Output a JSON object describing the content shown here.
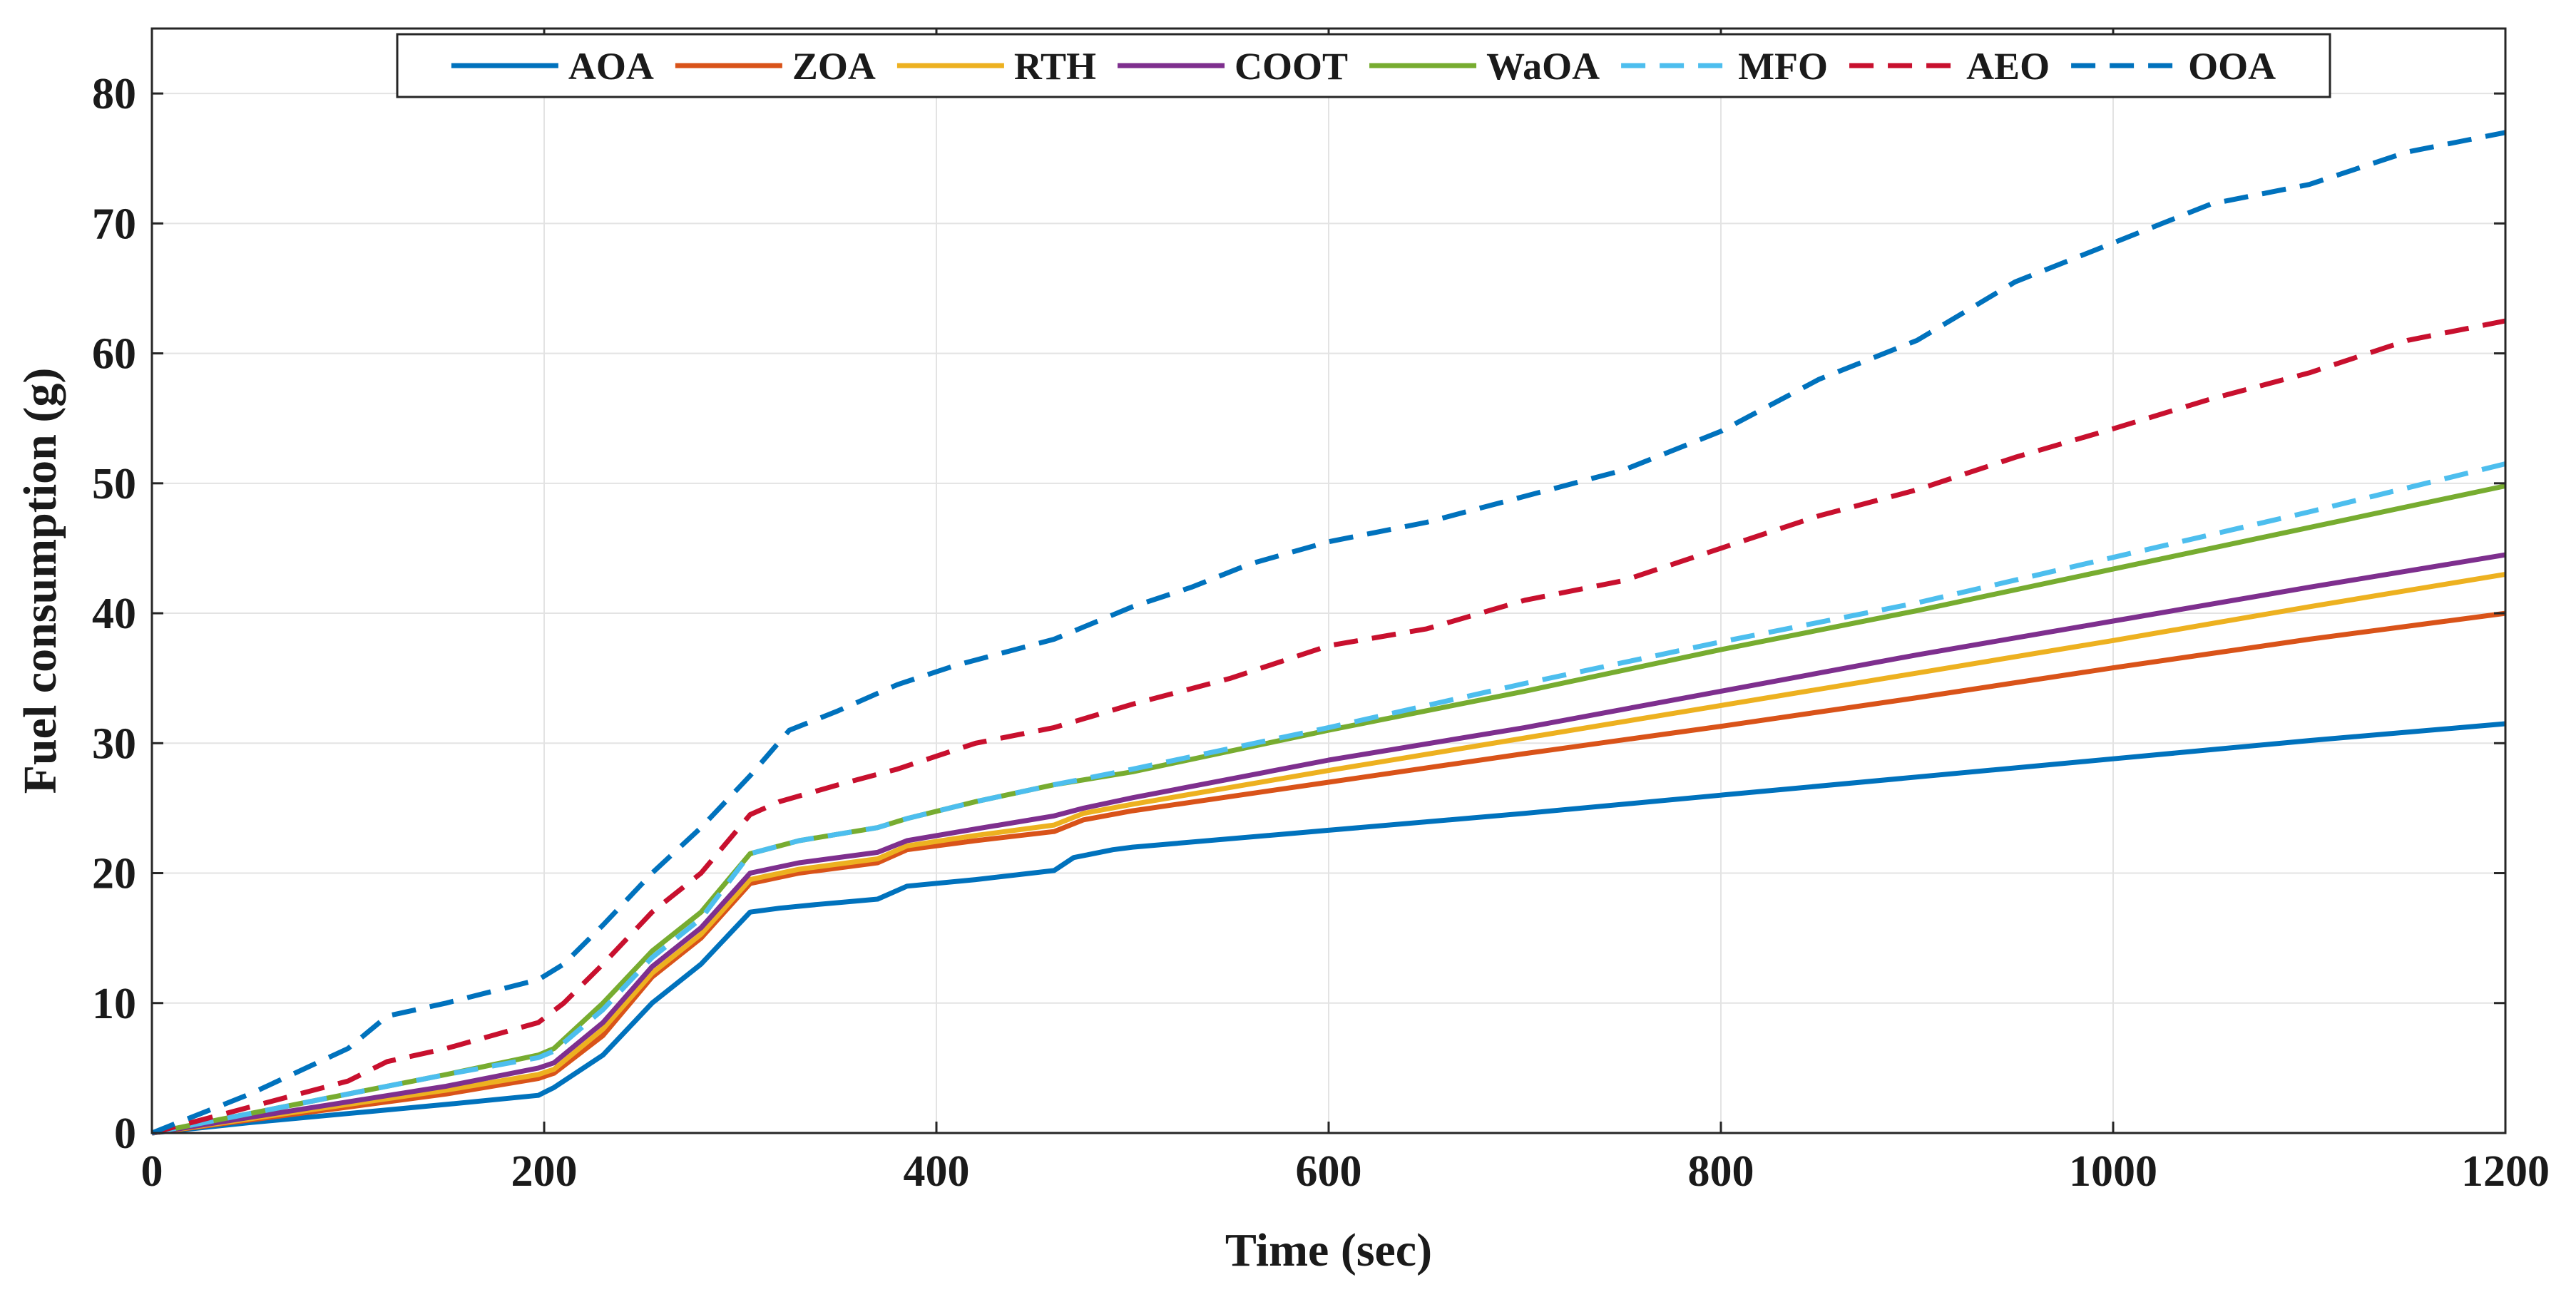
{
  "chart_data": {
    "type": "line",
    "title": "",
    "xlabel": "Time (sec)",
    "ylabel": "Fuel consumption (g)",
    "xlim": [
      0,
      1200
    ],
    "ylim": [
      0,
      85
    ],
    "xticks": [
      0,
      200,
      400,
      600,
      800,
      1000,
      1200
    ],
    "yticks": [
      0,
      10,
      20,
      30,
      40,
      50,
      60,
      70,
      80
    ],
    "grid": true,
    "legend": {
      "placement": "top-center",
      "orientation": "horizontal"
    },
    "series": [
      {
        "name": "AOA",
        "color": "#0072BD",
        "dash": "solid",
        "x": [
          0,
          50,
          100,
          150,
          197,
          205,
          230,
          255,
          280,
          305,
          320,
          340,
          370,
          385,
          420,
          460,
          470,
          490,
          500,
          600,
          700,
          800,
          900,
          1000,
          1100,
          1200
        ],
        "y": [
          0,
          0.8,
          1.5,
          2.2,
          2.9,
          3.5,
          6,
          10,
          13,
          17,
          17.3,
          17.6,
          18,
          19,
          19.5,
          20.2,
          21.2,
          21.8,
          22,
          23.3,
          24.6,
          26,
          27.4,
          28.8,
          30.2,
          31.5
        ]
      },
      {
        "name": "ZOA",
        "color": "#D95319",
        "dash": "solid",
        "x": [
          0,
          50,
          100,
          150,
          197,
          205,
          230,
          255,
          280,
          305,
          330,
          370,
          385,
          420,
          460,
          475,
          500,
          600,
          700,
          800,
          900,
          1000,
          1100,
          1200
        ],
        "y": [
          0,
          1,
          2,
          3,
          4.2,
          4.6,
          7.5,
          12,
          15,
          19.2,
          20,
          20.8,
          21.8,
          22.5,
          23.2,
          24.1,
          24.8,
          27,
          29.2,
          31.3,
          33.5,
          35.8,
          38,
          40
        ]
      },
      {
        "name": "RTH",
        "color": "#EDB120",
        "dash": "solid",
        "x": [
          0,
          50,
          100,
          150,
          197,
          205,
          230,
          255,
          280,
          305,
          330,
          370,
          385,
          420,
          460,
          475,
          500,
          600,
          700,
          800,
          900,
          1000,
          1100,
          1200
        ],
        "y": [
          0,
          1.1,
          2.2,
          3.3,
          4.5,
          4.9,
          8,
          12.3,
          15.3,
          19.5,
          20.3,
          21.1,
          22.1,
          22.9,
          23.7,
          24.6,
          25.3,
          27.9,
          30.4,
          32.9,
          35.4,
          37.9,
          40.5,
          43
        ]
      },
      {
        "name": "COOT",
        "color": "#7E2F8E",
        "dash": "solid",
        "x": [
          0,
          50,
          100,
          150,
          197,
          205,
          230,
          255,
          280,
          305,
          330,
          370,
          385,
          420,
          460,
          475,
          500,
          600,
          700,
          800,
          900,
          1000,
          1100,
          1200
        ],
        "y": [
          0,
          1.2,
          2.4,
          3.6,
          5,
          5.4,
          8.5,
          12.8,
          15.8,
          20,
          20.8,
          21.6,
          22.5,
          23.4,
          24.4,
          25,
          25.8,
          28.7,
          31.2,
          34,
          36.8,
          39.4,
          42,
          44.5
        ]
      },
      {
        "name": "WaOA",
        "color": "#77AC30",
        "dash": "solid",
        "x": [
          0,
          50,
          100,
          150,
          197,
          205,
          230,
          255,
          280,
          305,
          330,
          370,
          385,
          420,
          460,
          500,
          600,
          700,
          800,
          900,
          1000,
          1100,
          1200
        ],
        "y": [
          0,
          1.5,
          3,
          4.5,
          6,
          6.5,
          10,
          14,
          17,
          21.5,
          22.5,
          23.5,
          24.2,
          25.5,
          26.8,
          27.8,
          31,
          34,
          37.2,
          40.2,
          43.4,
          46.6,
          49.8
        ]
      },
      {
        "name": "MFO",
        "color": "#4DBEEE",
        "dash": "dashed",
        "x": [
          0,
          50,
          100,
          150,
          197,
          205,
          230,
          255,
          280,
          305,
          330,
          370,
          385,
          420,
          460,
          500,
          600,
          700,
          800,
          900,
          1000,
          1100,
          1200
        ],
        "y": [
          0,
          1.5,
          3,
          4.5,
          5.8,
          6.3,
          9.5,
          13.5,
          16.5,
          21.5,
          22.5,
          23.5,
          24.2,
          25.5,
          26.8,
          28,
          31.2,
          34.6,
          37.8,
          40.8,
          44.3,
          47.8,
          51.5
        ]
      },
      {
        "name": "AEO",
        "color": "#C8102E",
        "dash": "dashed",
        "x": [
          0,
          50,
          100,
          120,
          150,
          197,
          210,
          230,
          255,
          280,
          305,
          320,
          350,
          380,
          420,
          460,
          500,
          550,
          600,
          650,
          700,
          750,
          800,
          850,
          900,
          950,
          1000,
          1050,
          1100,
          1150,
          1200
        ],
        "y": [
          0,
          2,
          4,
          5.5,
          6.5,
          8.5,
          10,
          13,
          17,
          20,
          24.5,
          25.5,
          26.8,
          28,
          30,
          31.2,
          33,
          35,
          37.5,
          38.8,
          41,
          42.5,
          45,
          47.5,
          49.5,
          52,
          54.2,
          56.5,
          58.5,
          61,
          62.5
        ]
      },
      {
        "name": "OOA",
        "color": "#0072BD",
        "dash": "dashed",
        "x": [
          0,
          50,
          100,
          120,
          150,
          197,
          210,
          230,
          255,
          280,
          305,
          325,
          350,
          380,
          410,
          460,
          500,
          530,
          560,
          600,
          650,
          700,
          750,
          800,
          850,
          900,
          950,
          1000,
          1050,
          1100,
          1150,
          1200
        ],
        "y": [
          0,
          3,
          6.5,
          9,
          10,
          11.8,
          13,
          16,
          20,
          23.5,
          27.5,
          31,
          32.5,
          34.5,
          36,
          38,
          40.5,
          42,
          43.8,
          45.5,
          47,
          49,
          51,
          54,
          58,
          61,
          65.5,
          68.5,
          71.5,
          73,
          75.5,
          77
        ]
      }
    ]
  }
}
